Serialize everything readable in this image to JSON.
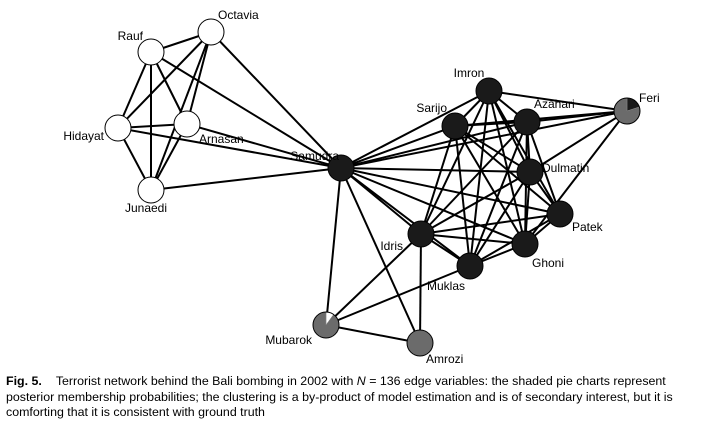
{
  "figure": {
    "nodes": [
      {
        "id": "rauf",
        "label": "Rauf",
        "pie": [
          1.0,
          0.0,
          0.0
        ]
      },
      {
        "id": "octavia",
        "label": "Octavia",
        "pie": [
          1.0,
          0.0,
          0.0
        ]
      },
      {
        "id": "hidayat",
        "label": "Hidayat",
        "pie": [
          1.0,
          0.0,
          0.0
        ]
      },
      {
        "id": "arnasan",
        "label": "Arnasan",
        "pie": [
          1.0,
          0.0,
          0.0
        ]
      },
      {
        "id": "junaedi",
        "label": "Junaedi",
        "pie": [
          1.0,
          0.0,
          0.0
        ]
      },
      {
        "id": "samudra",
        "label": "Samudra",
        "pie": [
          0.0,
          1.0,
          0.0
        ]
      },
      {
        "id": "imron",
        "label": "Imron",
        "pie": [
          0.0,
          1.0,
          0.0
        ]
      },
      {
        "id": "sarijo",
        "label": "Sarijo",
        "pie": [
          0.0,
          1.0,
          0.0
        ]
      },
      {
        "id": "azahari",
        "label": "Azahari",
        "pie": [
          0.0,
          1.0,
          0.0
        ]
      },
      {
        "id": "feri",
        "label": "Feri",
        "pie": [
          0.0,
          0.2,
          0.8
        ]
      },
      {
        "id": "dulmatin",
        "label": "Dulmatin",
        "pie": [
          0.0,
          1.0,
          0.0
        ]
      },
      {
        "id": "patek",
        "label": "Patek",
        "pie": [
          0.0,
          1.0,
          0.0
        ]
      },
      {
        "id": "idris",
        "label": "Idris",
        "pie": [
          0.0,
          1.0,
          0.0
        ]
      },
      {
        "id": "ghoni",
        "label": "Ghoni",
        "pie": [
          0.0,
          1.0,
          0.0
        ]
      },
      {
        "id": "muklas",
        "label": "Muklas",
        "pie": [
          0.0,
          1.0,
          0.0
        ]
      },
      {
        "id": "mubarok",
        "label": "Mubarok",
        "pie": [
          0.1,
          0.0,
          0.9
        ]
      },
      {
        "id": "amrozi",
        "label": "Amrozi",
        "pie": [
          0.0,
          0.0,
          1.0
        ]
      }
    ],
    "edges": [
      [
        "rauf",
        "octavia"
      ],
      [
        "rauf",
        "hidayat"
      ],
      [
        "rauf",
        "arnasan"
      ],
      [
        "rauf",
        "junaedi"
      ],
      [
        "rauf",
        "samudra"
      ],
      [
        "octavia",
        "hidayat"
      ],
      [
        "octavia",
        "arnasan"
      ],
      [
        "octavia",
        "junaedi"
      ],
      [
        "octavia",
        "samudra"
      ],
      [
        "hidayat",
        "arnasan"
      ],
      [
        "hidayat",
        "junaedi"
      ],
      [
        "hidayat",
        "samudra"
      ],
      [
        "arnasan",
        "junaedi"
      ],
      [
        "arnasan",
        "samudra"
      ],
      [
        "junaedi",
        "samudra"
      ],
      [
        "samudra",
        "imron"
      ],
      [
        "samudra",
        "sarijo"
      ],
      [
        "samudra",
        "azahari"
      ],
      [
        "samudra",
        "feri"
      ],
      [
        "samudra",
        "dulmatin"
      ],
      [
        "samudra",
        "patek"
      ],
      [
        "samudra",
        "idris"
      ],
      [
        "samudra",
        "ghoni"
      ],
      [
        "samudra",
        "muklas"
      ],
      [
        "samudra",
        "mubarok"
      ],
      [
        "samudra",
        "amrozi"
      ],
      [
        "imron",
        "sarijo"
      ],
      [
        "imron",
        "azahari"
      ],
      [
        "imron",
        "feri"
      ],
      [
        "imron",
        "dulmatin"
      ],
      [
        "imron",
        "patek"
      ],
      [
        "imron",
        "idris"
      ],
      [
        "imron",
        "ghoni"
      ],
      [
        "imron",
        "muklas"
      ],
      [
        "sarijo",
        "azahari"
      ],
      [
        "sarijo",
        "dulmatin"
      ],
      [
        "sarijo",
        "patek"
      ],
      [
        "sarijo",
        "idris"
      ],
      [
        "sarijo",
        "ghoni"
      ],
      [
        "sarijo",
        "muklas"
      ],
      [
        "sarijo",
        "feri"
      ],
      [
        "azahari",
        "feri"
      ],
      [
        "azahari",
        "dulmatin"
      ],
      [
        "azahari",
        "patek"
      ],
      [
        "azahari",
        "idris"
      ],
      [
        "azahari",
        "ghoni"
      ],
      [
        "azahari",
        "muklas"
      ],
      [
        "feri",
        "dulmatin"
      ],
      [
        "feri",
        "ghoni"
      ],
      [
        "dulmatin",
        "patek"
      ],
      [
        "dulmatin",
        "idris"
      ],
      [
        "dulmatin",
        "ghoni"
      ],
      [
        "dulmatin",
        "muklas"
      ],
      [
        "patek",
        "idris"
      ],
      [
        "patek",
        "ghoni"
      ],
      [
        "patek",
        "muklas"
      ],
      [
        "idris",
        "ghoni"
      ],
      [
        "idris",
        "muklas"
      ],
      [
        "idris",
        "mubarok"
      ],
      [
        "idris",
        "amrozi"
      ],
      [
        "ghoni",
        "muklas"
      ],
      [
        "muklas",
        "mubarok"
      ],
      [
        "mubarok",
        "amrozi"
      ]
    ],
    "colors": {
      "group1": "#ffffff",
      "group2": "#1a1a1a",
      "group3": "#6b6b6b",
      "stroke": "#000000",
      "edge": "#000000"
    }
  },
  "caption": {
    "label": "Fig. 5.",
    "text_before": "Terrorist network behind the Bali bombing in 2002 with ",
    "math_var": "N",
    "math_rest": " = 136 edge variables: the shaded pie charts represent posterior membership probabilities; the clustering is a by-product of model estimation and is of secondary interest, but it is comforting that it is consistent with ground truth"
  }
}
